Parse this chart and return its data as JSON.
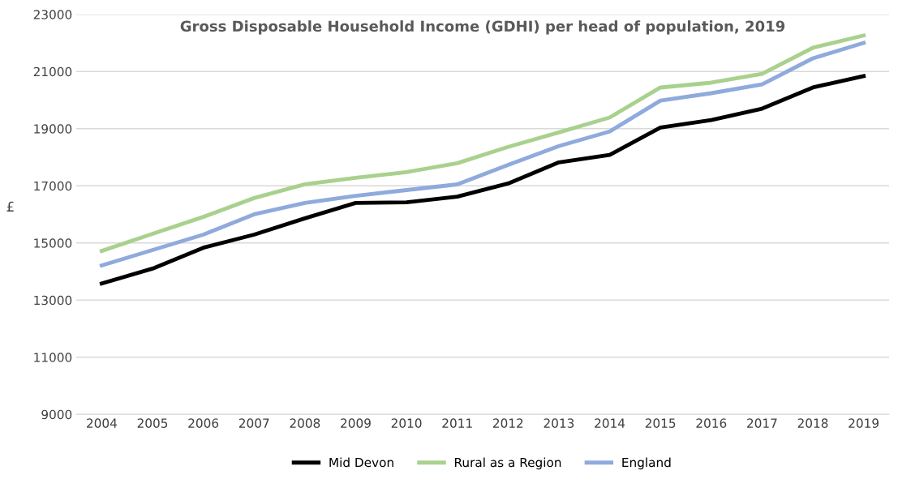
{
  "chart_data": {
    "type": "line",
    "title": "Gross Disposable Household Income (GDHI) per head of population, 2019",
    "ylabel": "£",
    "categories": [
      "2004",
      "2005",
      "2006",
      "2007",
      "2008",
      "2009",
      "2010",
      "2011",
      "2012",
      "2013",
      "2014",
      "2015",
      "2016",
      "2017",
      "2018",
      "2019"
    ],
    "series": [
      {
        "name": "Mid Devon",
        "color": "#000000",
        "values": [
          13580,
          14100,
          14830,
          15290,
          15860,
          16400,
          16420,
          16620,
          17080,
          17820,
          18080,
          19040,
          19300,
          19700,
          20440,
          20840
        ]
      },
      {
        "name": "Rural as a Region",
        "color": "#a9d18e",
        "values": [
          14720,
          15320,
          15910,
          16570,
          17050,
          17280,
          17480,
          17790,
          18360,
          18870,
          19390,
          20440,
          20610,
          20920,
          21830,
          22260
        ]
      },
      {
        "name": "England",
        "color": "#8faadc",
        "values": [
          14210,
          14750,
          15290,
          16000,
          16400,
          16650,
          16850,
          17050,
          17730,
          18390,
          18900,
          19980,
          20240,
          20550,
          21460,
          22000
        ]
      }
    ],
    "ylim": [
      9000,
      23000
    ],
    "yticks": [
      9000,
      11000,
      13000,
      15000,
      17000,
      19000,
      21000,
      23000
    ],
    "grid": "y",
    "legend": "bottom",
    "marker": "none",
    "line_style": "solid"
  }
}
